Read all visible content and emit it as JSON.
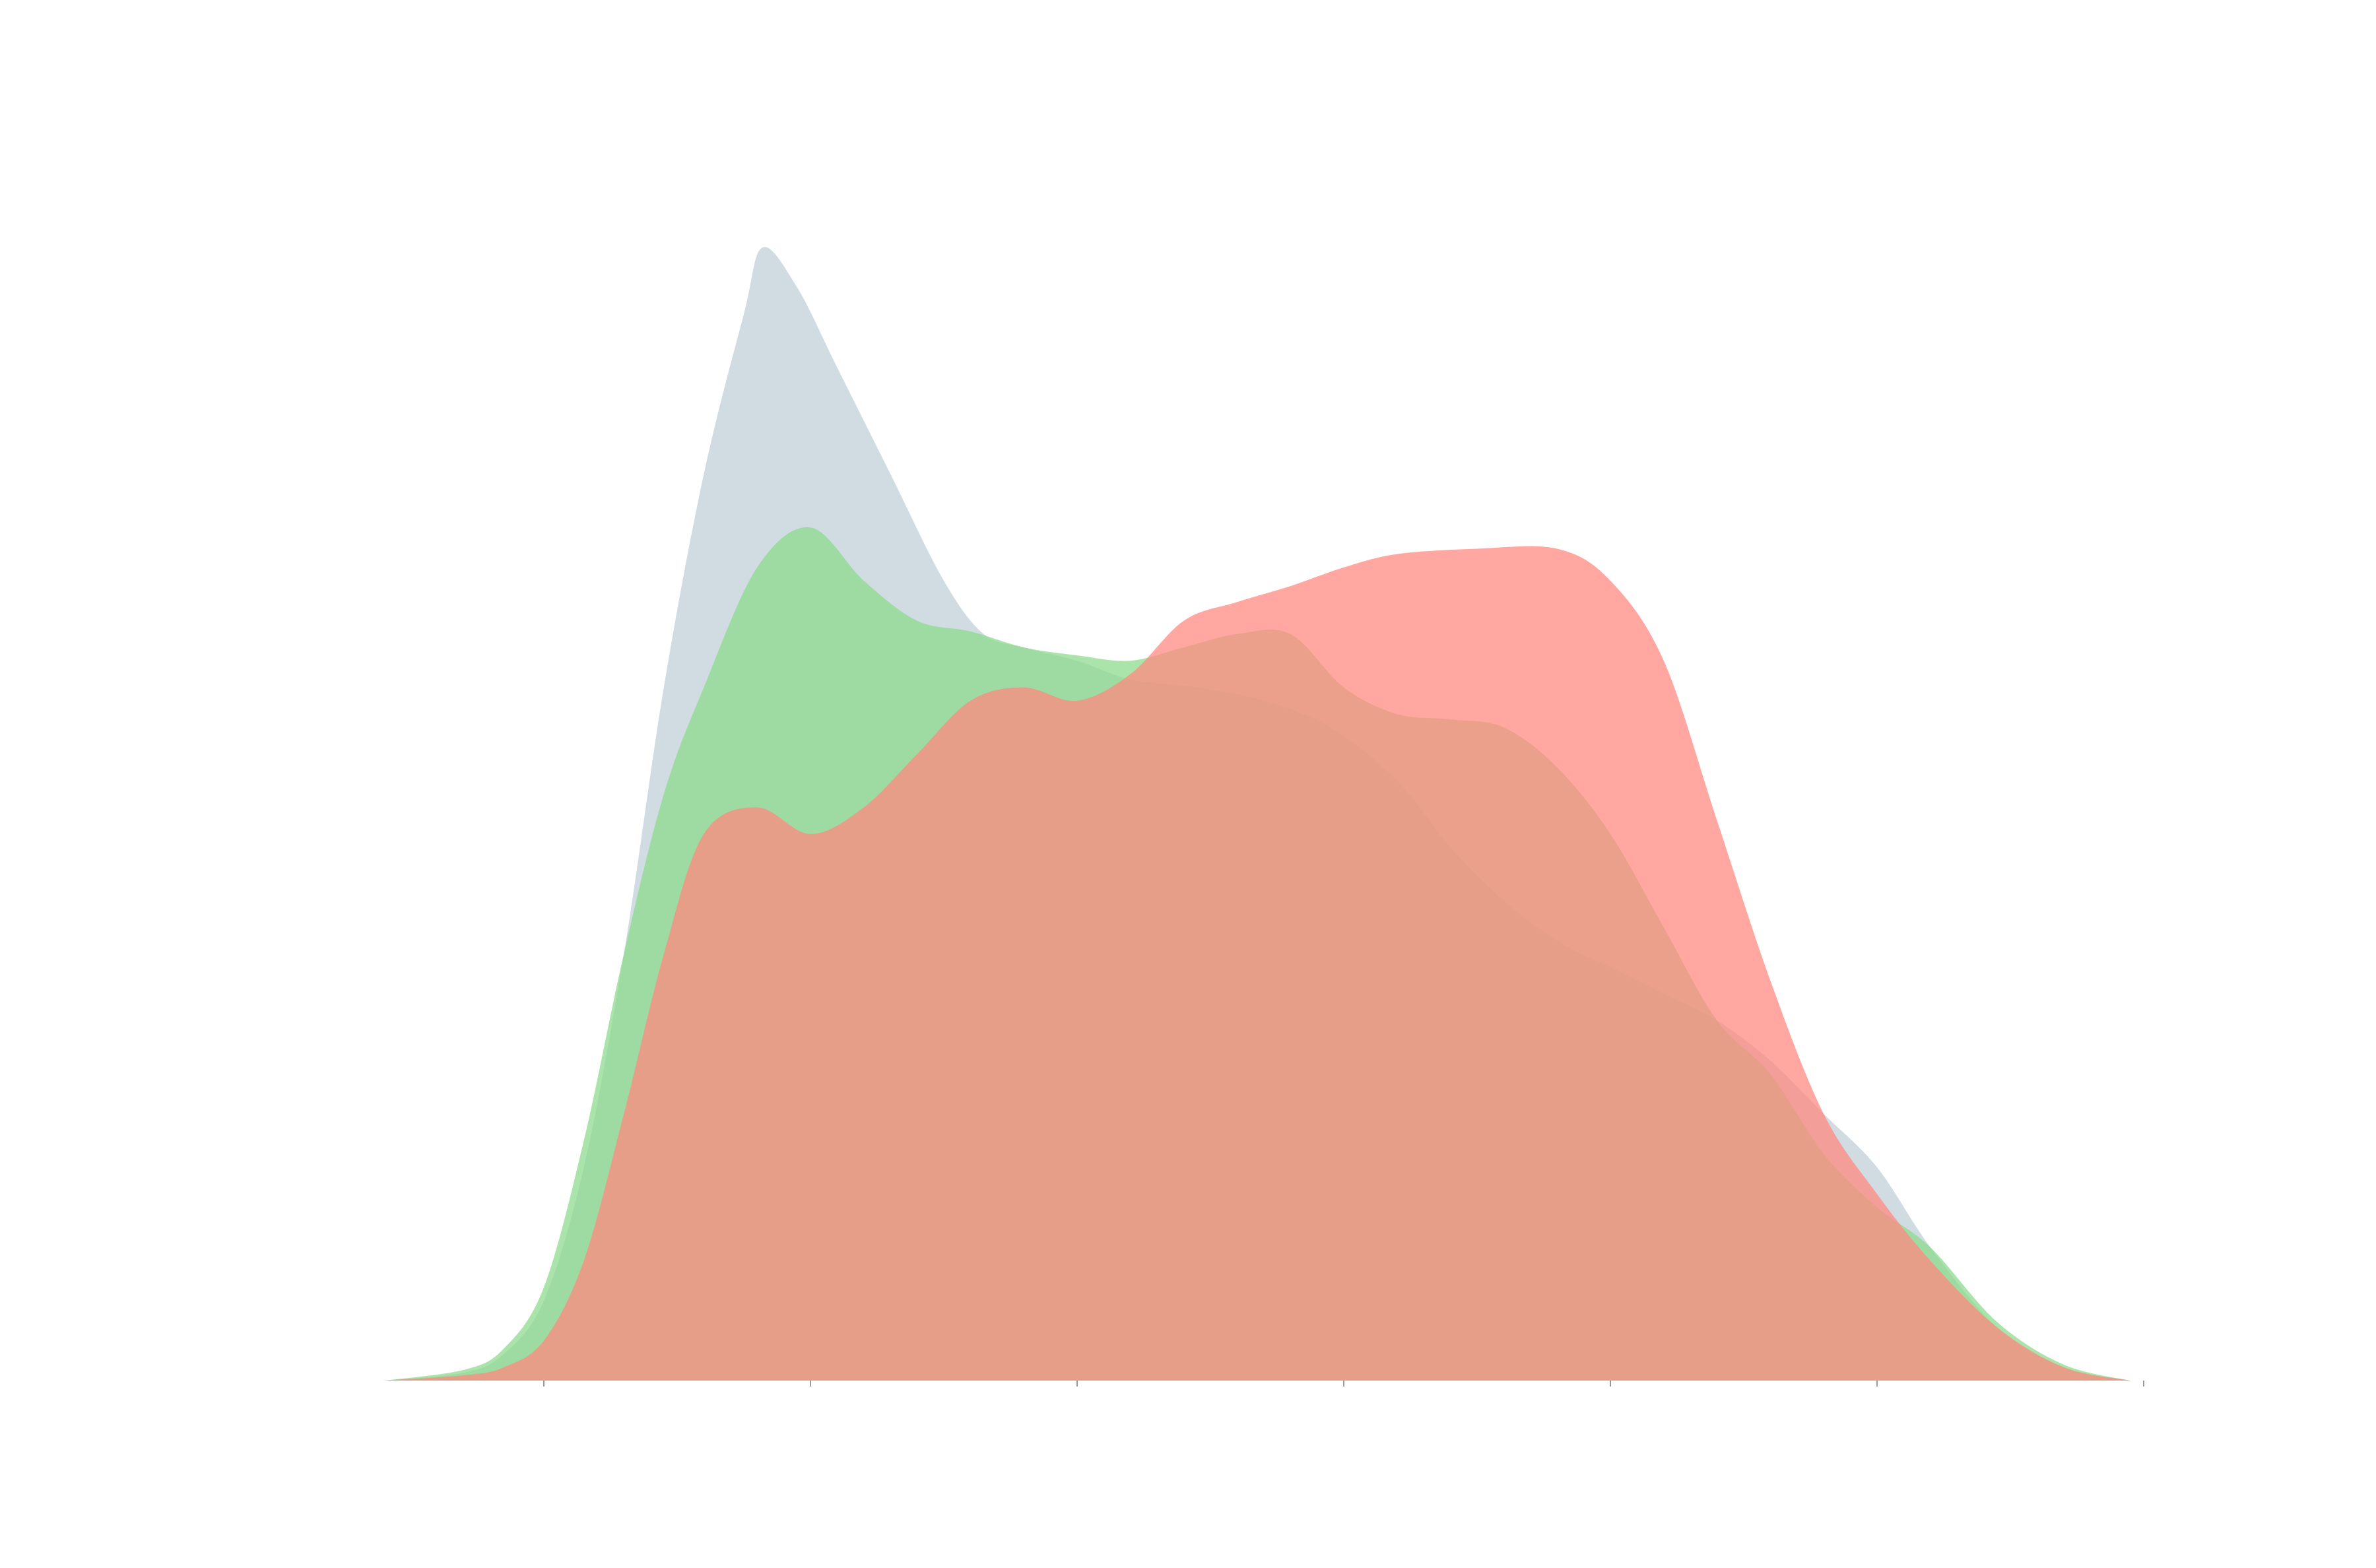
{
  "chart_data": {
    "type": "area",
    "title": "",
    "xlabel": "",
    "ylabel": "",
    "grid": false,
    "legend": "none",
    "xlim": [
      -0.6,
      6.0
    ],
    "ylim": [
      0,
      0.425
    ],
    "x_ticks": [
      0,
      1,
      2,
      3,
      4,
      5,
      6
    ],
    "series": [
      {
        "color": "#b0c4ce",
        "opacity": 0.6,
        "points": [
          [
            -0.6,
            0
          ],
          [
            -0.3,
            0.003
          ],
          [
            -0.15,
            0.01
          ],
          [
            0,
            0.03
          ],
          [
            0.15,
            0.08
          ],
          [
            0.3,
            0.16
          ],
          [
            0.45,
            0.26
          ],
          [
            0.6,
            0.34
          ],
          [
            0.75,
            0.4
          ],
          [
            0.82,
            0.425
          ],
          [
            0.95,
            0.41
          ],
          [
            1.1,
            0.38
          ],
          [
            1.3,
            0.34
          ],
          [
            1.5,
            0.3
          ],
          [
            1.65,
            0.28
          ],
          [
            1.8,
            0.275
          ],
          [
            2.0,
            0.27
          ],
          [
            2.2,
            0.263
          ],
          [
            2.45,
            0.26
          ],
          [
            2.7,
            0.255
          ],
          [
            2.95,
            0.245
          ],
          [
            3.2,
            0.225
          ],
          [
            3.4,
            0.2
          ],
          [
            3.6,
            0.18
          ],
          [
            3.8,
            0.165
          ],
          [
            4.0,
            0.155
          ],
          [
            4.2,
            0.145
          ],
          [
            4.4,
            0.135
          ],
          [
            4.6,
            0.12
          ],
          [
            4.8,
            0.1
          ],
          [
            5.0,
            0.08
          ],
          [
            5.2,
            0.05
          ],
          [
            5.45,
            0.02
          ],
          [
            5.7,
            0.005
          ],
          [
            5.95,
            0
          ]
        ]
      },
      {
        "color": "#8edb8e",
        "opacity": 0.75,
        "points": [
          [
            -0.6,
            0
          ],
          [
            -0.3,
            0.004
          ],
          [
            -0.15,
            0.012
          ],
          [
            0,
            0.035
          ],
          [
            0.15,
            0.09
          ],
          [
            0.3,
            0.16
          ],
          [
            0.45,
            0.22
          ],
          [
            0.6,
            0.26
          ],
          [
            0.8,
            0.305
          ],
          [
            1.0,
            0.32
          ],
          [
            1.2,
            0.3
          ],
          [
            1.4,
            0.285
          ],
          [
            1.6,
            0.281
          ],
          [
            1.8,
            0.275
          ],
          [
            2.0,
            0.272
          ],
          [
            2.2,
            0.27
          ],
          [
            2.4,
            0.275
          ],
          [
            2.6,
            0.28
          ],
          [
            2.8,
            0.28
          ],
          [
            3.0,
            0.26
          ],
          [
            3.2,
            0.25
          ],
          [
            3.4,
            0.248
          ],
          [
            3.6,
            0.245
          ],
          [
            3.8,
            0.23
          ],
          [
            4.0,
            0.205
          ],
          [
            4.2,
            0.17
          ],
          [
            4.4,
            0.135
          ],
          [
            4.6,
            0.115
          ],
          [
            4.8,
            0.085
          ],
          [
            5.0,
            0.065
          ],
          [
            5.2,
            0.05
          ],
          [
            5.45,
            0.022
          ],
          [
            5.7,
            0.006
          ],
          [
            5.95,
            0
          ]
        ]
      },
      {
        "color": "#ff8a80",
        "opacity": 0.75,
        "points": [
          [
            -0.6,
            0
          ],
          [
            -0.3,
            0.002
          ],
          [
            -0.15,
            0.005
          ],
          [
            0,
            0.015
          ],
          [
            0.15,
            0.045
          ],
          [
            0.3,
            0.1
          ],
          [
            0.45,
            0.16
          ],
          [
            0.6,
            0.205
          ],
          [
            0.8,
            0.215
          ],
          [
            1.0,
            0.205
          ],
          [
            1.2,
            0.215
          ],
          [
            1.4,
            0.235
          ],
          [
            1.6,
            0.255
          ],
          [
            1.8,
            0.26
          ],
          [
            2.0,
            0.255
          ],
          [
            2.2,
            0.265
          ],
          [
            2.4,
            0.285
          ],
          [
            2.6,
            0.292
          ],
          [
            2.8,
            0.298
          ],
          [
            3.0,
            0.305
          ],
          [
            3.2,
            0.31
          ],
          [
            3.5,
            0.312
          ],
          [
            3.8,
            0.312
          ],
          [
            4.0,
            0.3
          ],
          [
            4.2,
            0.27
          ],
          [
            4.4,
            0.21
          ],
          [
            4.6,
            0.15
          ],
          [
            4.8,
            0.1
          ],
          [
            5.0,
            0.07
          ],
          [
            5.2,
            0.045
          ],
          [
            5.45,
            0.02
          ],
          [
            5.7,
            0.005
          ],
          [
            5.95,
            0
          ]
        ]
      }
    ]
  }
}
